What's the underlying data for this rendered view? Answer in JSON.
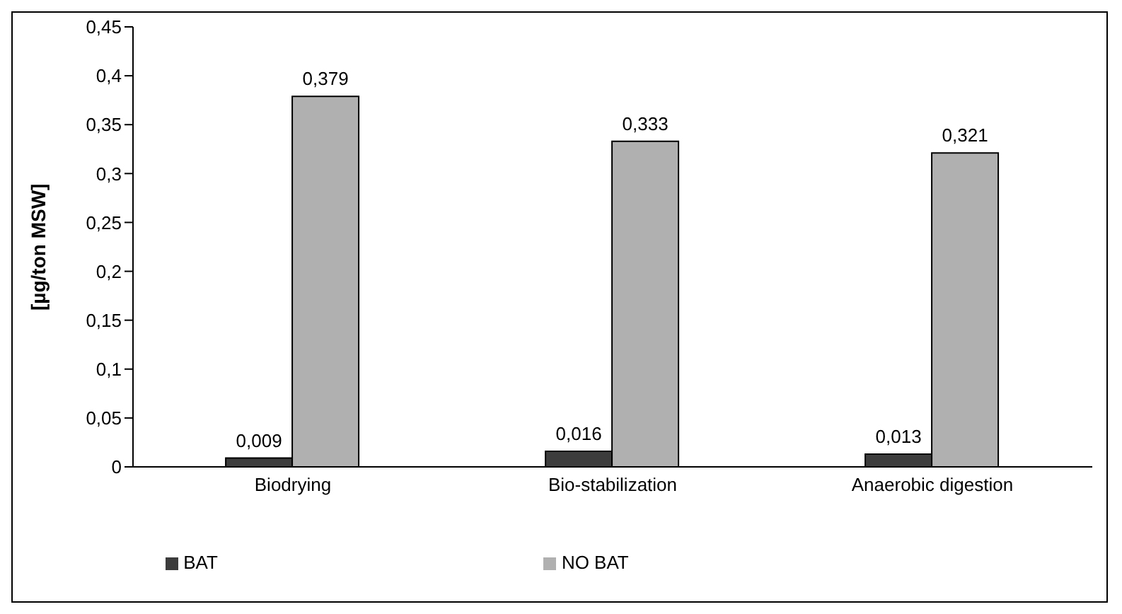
{
  "chart_data": {
    "type": "bar",
    "ylabel": "[µg/ton MSW]",
    "categories": [
      "Biodrying",
      "Bio-stabilization",
      "Anaerobic digestion"
    ],
    "series": [
      {
        "name": "BAT",
        "color": "#3c3c3c",
        "values": [
          0.009,
          0.016,
          0.013
        ],
        "value_labels": [
          "0,009",
          "0,016",
          "0,013"
        ]
      },
      {
        "name": "NO BAT",
        "color": "#b0b0b0",
        "values": [
          0.379,
          0.333,
          0.321
        ],
        "value_labels": [
          "0,379",
          "0,333",
          "0,321"
        ]
      }
    ],
    "ylim": [
      0,
      0.45
    ],
    "yticks": [
      {
        "value": 0,
        "label": "0"
      },
      {
        "value": 0.05,
        "label": "0,05"
      },
      {
        "value": 0.1,
        "label": "0,1"
      },
      {
        "value": 0.15,
        "label": "0,15"
      },
      {
        "value": 0.2,
        "label": "0,2"
      },
      {
        "value": 0.25,
        "label": "0,25"
      },
      {
        "value": 0.3,
        "label": "0,3"
      },
      {
        "value": 0.35,
        "label": "0,35"
      },
      {
        "value": 0.4,
        "label": "0,4"
      },
      {
        "value": 0.45,
        "label": "0,45"
      }
    ],
    "grid": false,
    "legend": "bottom"
  }
}
